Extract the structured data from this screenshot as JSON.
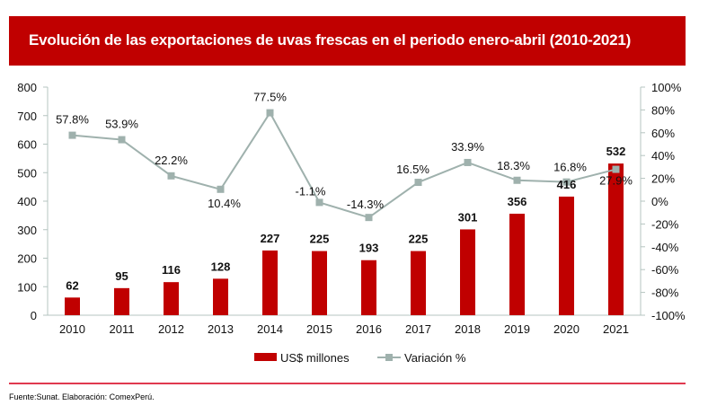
{
  "header": {
    "title": "Evolución de las exportaciones de uvas frescas en el periodo enero-abril (2010-2021)"
  },
  "footer": {
    "source": "Fuente:Sunat. Elaboración: ComexPerú."
  },
  "colors": {
    "title_bg": "#c00000",
    "bar": "#c00000",
    "line": "#9fb1ad",
    "axis": "#b5c4c0",
    "footer_rule": "#e0394f"
  },
  "chart_data": {
    "type": "bar+line",
    "title": "Evolución de las exportaciones de uvas frescas en el periodo enero-abril (2010-2021)",
    "categories": [
      "2010",
      "2011",
      "2012",
      "2013",
      "2014",
      "2015",
      "2016",
      "2017",
      "2018",
      "2019",
      "2020",
      "2021"
    ],
    "series": [
      {
        "name": "US$ millones",
        "type": "bar",
        "axis": "left",
        "values": [
          62,
          95,
          116,
          128,
          227,
          225,
          193,
          225,
          301,
          356,
          416,
          532
        ],
        "labels": [
          "62",
          "95",
          "116",
          "128",
          "227",
          "225",
          "193",
          "225",
          "301",
          "356",
          "416",
          "532"
        ]
      },
      {
        "name": "Variación %",
        "type": "line",
        "axis": "right",
        "values": [
          57.8,
          53.9,
          22.2,
          10.4,
          77.5,
          -1.1,
          -14.3,
          16.5,
          33.9,
          18.3,
          16.8,
          27.9
        ],
        "labels": [
          "57.8%",
          "53.9%",
          "22.2%",
          "10.4%",
          "77.5%",
          "-1.1%",
          "-14.3%",
          "16.5%",
          "33.9%",
          "18.3%",
          "16.8%",
          "27.9%"
        ]
      }
    ],
    "y_left": {
      "range": [
        0,
        800
      ],
      "ticks": [
        "0",
        "100",
        "200",
        "300",
        "400",
        "500",
        "600",
        "700",
        "800"
      ]
    },
    "y_right": {
      "range": [
        -100,
        100
      ],
      "ticks": [
        "-100%",
        "-80%",
        "-60%",
        "-40%",
        "-20%",
        "0%",
        "20%",
        "40%",
        "60%",
        "80%",
        "100%"
      ]
    },
    "xlabel": "",
    "ylabel": "",
    "grid": false,
    "legend": {
      "placement": "bottom-center",
      "entries": [
        "US$ millones",
        "Variación %"
      ]
    }
  }
}
